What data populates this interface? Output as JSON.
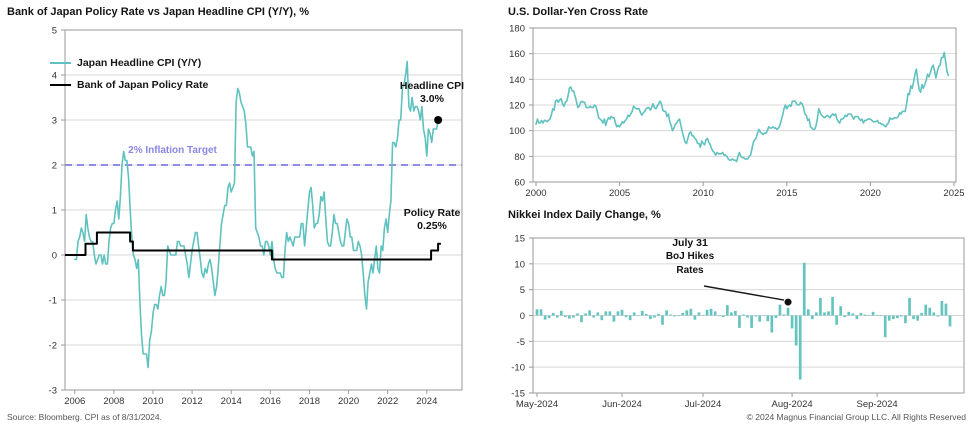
{
  "footer": {
    "source": "Source: Bloomberg. CPI as of 8/31/2024.",
    "copyright": "© 2024 Magnus Financial Group LLC. All Rights Reserved"
  },
  "colors": {
    "teal": "#5fc2be",
    "bar_teal": "#66c4c0",
    "black": "#000000",
    "target": "#8f8ce8",
    "target_text": "#8a87e6",
    "grid": "#d8d8d8",
    "border": "#9a9a9a",
    "tick_text": "#333333"
  },
  "chart_data": [
    {
      "id": "boj",
      "type": "line",
      "title": "Bank of Japan Policy Rate vs Japan Headline CPI (Y/Y), %",
      "ylim": [
        -3,
        5
      ],
      "yticks": [
        5,
        4,
        3,
        2,
        1,
        0,
        -1,
        -2,
        -3
      ],
      "xticks": [
        2006,
        2008,
        2010,
        2012,
        2014,
        2016,
        2018,
        2020,
        2022,
        2024
      ],
      "grid": true,
      "legend_position": "top-left-inside",
      "legend": [
        {
          "label": "Japan Headline CPI (Y/Y)",
          "color_key": "teal"
        },
        {
          "label": "Bank of Japan Policy Rate",
          "color_key": "black"
        }
      ],
      "target_line": {
        "value": 2,
        "label": "2% Inflation Target"
      },
      "series": [
        {
          "name": "Japan Headline CPI (Y/Y)",
          "start": 2006.0,
          "step_months": 1,
          "values": [
            -0.1,
            -0.1,
            0.3,
            0.4,
            0.6,
            0.5,
            0.3,
            0.9,
            0.6,
            0.4,
            0.3,
            0.3,
            0.0,
            -0.2,
            -0.1,
            0.0,
            0.0,
            -0.2,
            0.0,
            -0.2,
            -0.2,
            0.3,
            0.6,
            0.7,
            0.7,
            1.0,
            1.2,
            0.8,
            1.3,
            2.0,
            2.3,
            2.1,
            2.1,
            1.7,
            1.0,
            0.4,
            0.0,
            -0.1,
            -0.3,
            -0.1,
            -1.1,
            -1.8,
            -2.2,
            -2.2,
            -2.2,
            -2.5,
            -1.9,
            -1.7,
            -1.3,
            -1.1,
            -1.1,
            -1.2,
            -0.9,
            -0.7,
            -0.9,
            -0.9,
            -0.6,
            0.2,
            0.1,
            0.0,
            0.0,
            0.0,
            0.0,
            0.3,
            0.3,
            0.2,
            0.2,
            0.2,
            0.0,
            -0.2,
            -0.5,
            -0.2,
            0.1,
            0.3,
            0.5,
            0.5,
            0.2,
            -0.1,
            -0.4,
            -0.5,
            -0.3,
            -0.4,
            -0.2,
            -0.1,
            -0.3,
            -0.6,
            -0.9,
            -0.7,
            -0.3,
            0.2,
            0.7,
            0.9,
            1.1,
            1.1,
            1.5,
            1.6,
            1.4,
            1.5,
            1.6,
            3.4,
            3.7,
            3.6,
            3.4,
            3.3,
            3.2,
            2.9,
            2.4,
            2.4,
            2.4,
            2.2,
            2.3,
            0.6,
            0.5,
            0.4,
            0.2,
            0.2,
            0.0,
            0.3,
            0.3,
            0.2,
            0.0,
            0.3,
            -0.1,
            -0.3,
            -0.4,
            -0.4,
            -0.4,
            -0.5,
            -0.5,
            0.1,
            0.5,
            0.3,
            0.4,
            0.3,
            0.2,
            0.4,
            0.4,
            0.4,
            0.4,
            0.7,
            0.7,
            0.2,
            0.6,
            1.0,
            1.4,
            1.5,
            1.1,
            0.6,
            0.7,
            0.7,
            0.9,
            1.3,
            1.2,
            1.4,
            0.8,
            0.3,
            0.2,
            0.2,
            0.5,
            0.9,
            0.7,
            0.7,
            0.5,
            0.3,
            0.2,
            0.2,
            0.5,
            0.8,
            0.7,
            0.4,
            0.4,
            0.1,
            0.1,
            0.1,
            0.3,
            0.2,
            0.0,
            -0.4,
            -0.9,
            -1.2,
            -0.6,
            -0.4,
            -0.2,
            -0.4,
            -0.1,
            0.2,
            -0.3,
            -0.4,
            0.2,
            0.1,
            0.6,
            0.8,
            0.5,
            0.9,
            1.2,
            2.5,
            2.5,
            2.4,
            2.6,
            3.0,
            3.0,
            3.7,
            3.8,
            4.0,
            4.3,
            3.3,
            3.2,
            3.5,
            3.2,
            3.3,
            3.3,
            3.2,
            3.0,
            3.3,
            2.8,
            2.6,
            2.2,
            2.8,
            2.7,
            2.5,
            2.8,
            2.8,
            2.8,
            3.0
          ]
        },
        {
          "name": "Bank of Japan Policy Rate",
          "points": [
            [
              2005.5,
              0
            ],
            [
              2006.55,
              0
            ],
            [
              2006.55,
              0.25
            ],
            [
              2007.13,
              0.25
            ],
            [
              2007.13,
              0.5
            ],
            [
              2008.83,
              0.5
            ],
            [
              2008.83,
              0.3
            ],
            [
              2008.97,
              0.3
            ],
            [
              2008.97,
              0.1
            ],
            [
              2016.08,
              0.1
            ],
            [
              2016.08,
              -0.1
            ],
            [
              2024.22,
              -0.1
            ],
            [
              2024.22,
              0.1
            ],
            [
              2024.58,
              0.1
            ],
            [
              2024.58,
              0.25
            ],
            [
              2024.72,
              0.25
            ]
          ]
        }
      ],
      "end_dot": {
        "x": 2024.58,
        "y": 3.0
      },
      "annotations": [
        {
          "lines": [
            "Headline CPI",
            "3.0%"
          ]
        },
        {
          "lines": [
            "Policy Rate",
            "0.25%"
          ]
        }
      ]
    },
    {
      "id": "usdjpy",
      "type": "line",
      "title": "U.S. Dollar-Yen Cross Rate",
      "ylim": [
        60,
        180
      ],
      "yticks": [
        180,
        160,
        140,
        120,
        100,
        80,
        60
      ],
      "xticks": [
        2000,
        2005,
        2010,
        2015,
        2020,
        2025
      ],
      "grid": true,
      "series": [
        {
          "name": "USD/JPY",
          "start": 2000.0,
          "step_months": 1,
          "values": [
            105,
            109,
            106,
            106,
            108,
            106,
            108,
            108,
            107,
            108,
            109,
            112,
            117,
            116,
            123,
            124,
            122,
            124,
            125,
            121,
            119,
            122,
            123,
            127,
            133,
            134,
            131,
            131,
            127,
            123,
            118,
            119,
            122,
            123,
            122,
            122,
            118,
            118,
            118,
            119,
            118,
            118,
            120,
            119,
            115,
            110,
            109,
            108,
            106,
            109,
            104,
            108,
            110,
            109,
            111,
            110,
            110,
            106,
            103,
            104,
            103,
            105,
            107,
            106,
            108,
            109,
            112,
            111,
            113,
            115,
            119,
            118,
            117,
            117,
            117,
            114,
            112,
            114,
            115,
            117,
            118,
            118,
            116,
            118,
            121,
            118,
            117,
            119,
            121,
            123,
            121,
            116,
            115,
            115,
            111,
            113,
            107,
            104,
            100,
            102,
            105,
            106,
            108,
            109,
            104,
            99,
            95,
            91,
            90,
            94,
            98,
            99,
            96,
            96,
            94,
            93,
            90,
            90,
            87,
            92,
            90,
            89,
            93,
            94,
            91,
            89,
            86,
            84,
            83,
            81,
            83,
            82,
            82,
            82,
            83,
            81,
            81,
            80,
            78,
            77,
            77,
            78,
            77,
            77,
            76,
            80,
            83,
            80,
            79,
            79,
            78,
            78,
            78,
            80,
            81,
            86,
            91,
            93,
            94,
            98,
            101,
            99,
            98,
            97,
            98,
            98,
            100,
            103,
            102,
            102,
            103,
            102,
            102,
            101,
            102,
            104,
            108,
            112,
            117,
            120,
            117,
            119,
            120,
            119,
            123,
            123,
            123,
            121,
            120,
            120,
            122,
            121,
            118,
            113,
            112,
            108,
            109,
            103,
            102,
            101,
            101,
            104,
            110,
            117,
            114,
            112,
            111,
            110,
            111,
            112,
            111,
            110,
            112,
            113,
            112,
            113,
            109,
            107,
            106,
            109,
            109,
            110,
            112,
            111,
            113,
            113,
            113,
            111,
            109,
            111,
            111,
            111,
            109,
            108,
            109,
            106,
            108,
            108,
            109,
            109,
            109,
            108,
            107,
            107,
            107,
            108,
            106,
            106,
            105,
            105,
            104,
            103,
            105,
            106,
            110,
            109,
            109,
            110,
            110,
            110,
            111,
            114,
            113,
            115,
            115,
            115,
            121,
            129,
            128,
            135,
            133,
            138,
            144,
            148,
            139,
            132,
            130,
            136,
            133,
            136,
            139,
            144,
            142,
            145,
            149,
            151,
            147,
            141,
            146,
            150,
            151,
            157,
            157,
            161,
            154,
            146,
            143
          ]
        }
      ]
    },
    {
      "id": "nikkei",
      "type": "bar",
      "title": "Nikkei Index Daily Change, %",
      "ylim": [
        -15,
        15
      ],
      "yticks": [
        15,
        10,
        5,
        0,
        -5,
        -10,
        -15
      ],
      "grid": true,
      "xtick_labels": [
        "May-2024",
        "Jun-2024",
        "Jul-2024",
        "Aug-2024",
        "Sep-2024"
      ],
      "xtick_indices": [
        0,
        21,
        41,
        63,
        84
      ],
      "values": [
        1.2,
        1.2,
        -0.8,
        -0.5,
        0.5,
        -0.4,
        0.9,
        -0.3,
        -0.6,
        -0.4,
        0.4,
        -1.3,
        0.4,
        1.0,
        -0.4,
        0.6,
        -0.9,
        0.8,
        0.8,
        -1.2,
        0.8,
        1.1,
        -0.3,
        -0.9,
        0.6,
        -0.1,
        0.9,
        0.3,
        -0.7,
        -0.4,
        0.3,
        -1.8,
        1.0,
        0.2,
        -0.2,
        -0.1,
        0.5,
        1.0,
        1.3,
        -0.8,
        0.6,
        0.1,
        1.1,
        1.3,
        0.8,
        0.0,
        -0.3,
        2.0,
        0.6,
        0.9,
        -2.4,
        0.2,
        -0.4,
        -2.4,
        -0.2,
        -1.2,
        0.0,
        -1.1,
        -3.3,
        -0.5,
        2.1,
        0.2,
        1.5,
        -2.5,
        -5.8,
        -12.4,
        10.2,
        1.2,
        -0.7,
        0.6,
        3.4,
        0.6,
        0.8,
        3.6,
        -1.8,
        1.8,
        -0.3,
        0.7,
        0.4,
        -0.7,
        0.5,
        0.2,
        0.1,
        0.7,
        0.1,
        -0.1,
        -4.2,
        -1.0,
        -0.7,
        -0.5,
        -0.2,
        -1.5,
        3.4,
        -0.7,
        -1.0,
        0.5,
        2.1,
        1.5,
        0.6,
        -0.2,
        2.8,
        2.3,
        -2.1
      ],
      "annotation": {
        "lines": [
          "July 31",
          "BoJ Hikes",
          "Rates"
        ],
        "bar_index": 62,
        "dot_y": 2.6
      }
    }
  ]
}
